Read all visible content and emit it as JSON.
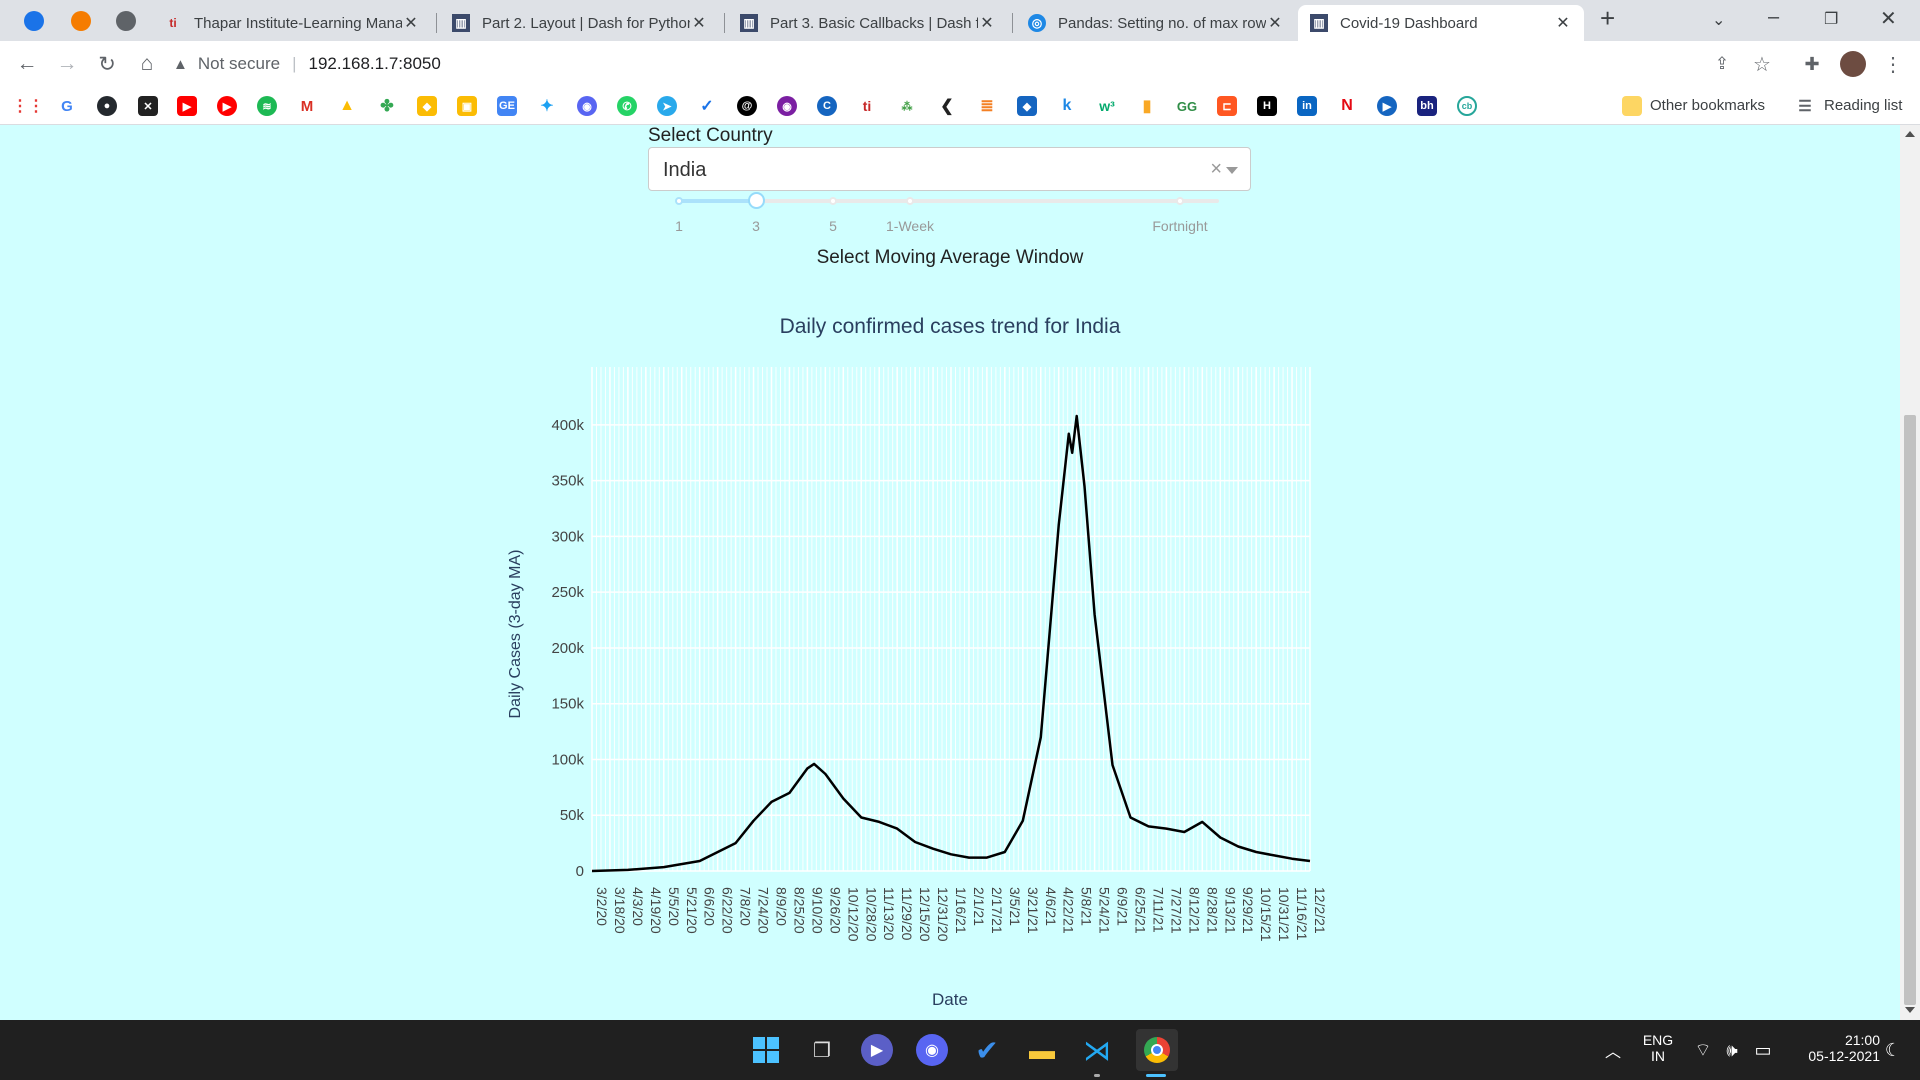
{
  "browser": {
    "tabs": [
      {
        "title": "Thapar Institute-Learning Mana",
        "icon": "ti-logo-icon"
      },
      {
        "title": "Part 2. Layout | Dash for Python",
        "icon": "dash-icon"
      },
      {
        "title": "Part 3. Basic Callbacks | Dash fo",
        "icon": "dash-icon"
      },
      {
        "title": "Pandas: Setting no. of max row",
        "icon": "pandas-icon"
      },
      {
        "title": "Covid-19 Dashboard",
        "icon": "dash-icon"
      }
    ],
    "active_tab_index": 4,
    "security_text": "Not secure",
    "url": "192.168.1.7:8050",
    "bookmarks": [
      "Other bookmarks",
      "Reading list"
    ]
  },
  "page": {
    "country_label": "Select Country",
    "country_value": "India",
    "slider": {
      "marks": [
        "1",
        "3",
        "5",
        "1-Week",
        "Fortnight"
      ],
      "selected": "3",
      "caption": "Select Moving Average Window"
    }
  },
  "chart_data": {
    "type": "line",
    "title": "Daily confirmed cases trend for India",
    "xlabel": "Date",
    "ylabel": "Daily Cases (3-day MA)",
    "ylim": [
      0,
      425000
    ],
    "yticks": [
      0,
      50000,
      100000,
      150000,
      200000,
      250000,
      300000,
      350000,
      400000
    ],
    "ytick_labels": [
      "0",
      "50k",
      "100k",
      "150k",
      "200k",
      "250k",
      "300k",
      "350k",
      "400k"
    ],
    "xtick_labels": [
      "3/2/20",
      "3/18/20",
      "4/3/20",
      "4/19/20",
      "5/5/20",
      "5/21/20",
      "6/6/20",
      "6/22/20",
      "7/8/20",
      "7/24/20",
      "8/9/20",
      "8/25/20",
      "9/10/20",
      "9/26/20",
      "10/12/20",
      "10/28/20",
      "11/13/20",
      "11/29/20",
      "12/15/20",
      "12/31/20",
      "1/16/21",
      "2/1/21",
      "2/17/21",
      "3/5/21",
      "3/21/21",
      "4/6/21",
      "4/22/21",
      "5/8/21",
      "5/24/21",
      "6/9/21",
      "6/25/21",
      "7/11/21",
      "7/27/21",
      "8/12/21",
      "8/28/21",
      "9/13/21",
      "9/29/21",
      "10/15/21",
      "10/31/21",
      "11/16/21",
      "12/2/21"
    ],
    "grid": true,
    "series": [
      {
        "color": "#000000",
        "points": [
          [
            "3/2/20",
            0
          ],
          [
            "4/3/20",
            1000
          ],
          [
            "5/5/20",
            3500
          ],
          [
            "6/6/20",
            9000
          ],
          [
            "7/8/20",
            25000
          ],
          [
            "7/24/20",
            45000
          ],
          [
            "8/9/20",
            62000
          ],
          [
            "8/25/20",
            70000
          ],
          [
            "9/10/20",
            92000
          ],
          [
            "9/16/20",
            96000
          ],
          [
            "9/26/20",
            87000
          ],
          [
            "10/12/20",
            65000
          ],
          [
            "10/28/20",
            48000
          ],
          [
            "11/13/20",
            44000
          ],
          [
            "11/29/20",
            38000
          ],
          [
            "12/15/20",
            26000
          ],
          [
            "12/31/20",
            20000
          ],
          [
            "1/16/21",
            15000
          ],
          [
            "2/1/21",
            12000
          ],
          [
            "2/17/21",
            12000
          ],
          [
            "3/5/21",
            17000
          ],
          [
            "3/21/21",
            45000
          ],
          [
            "4/6/21",
            120000
          ],
          [
            "4/22/21",
            310000
          ],
          [
            "5/1/21",
            392000
          ],
          [
            "5/4/21",
            375000
          ],
          [
            "5/8/21",
            408000
          ],
          [
            "5/15/21",
            345000
          ],
          [
            "5/24/21",
            230000
          ],
          [
            "6/9/21",
            95000
          ],
          [
            "6/25/21",
            48000
          ],
          [
            "7/11/21",
            40000
          ],
          [
            "7/27/21",
            38000
          ],
          [
            "8/12/21",
            35000
          ],
          [
            "8/28/21",
            44000
          ],
          [
            "9/13/21",
            30000
          ],
          [
            "9/29/21",
            22000
          ],
          [
            "10/15/21",
            17000
          ],
          [
            "10/31/21",
            14000
          ],
          [
            "11/16/21",
            11000
          ],
          [
            "12/2/21",
            9000
          ]
        ]
      }
    ]
  },
  "taskbar": {
    "lang_1": "ENG",
    "lang_2": "IN",
    "time": "21:00",
    "date": "05-12-2021"
  },
  "colors": {
    "page_bg": "#d0ffff",
    "line": "#000000",
    "slider_accent": "#96dbfa"
  }
}
